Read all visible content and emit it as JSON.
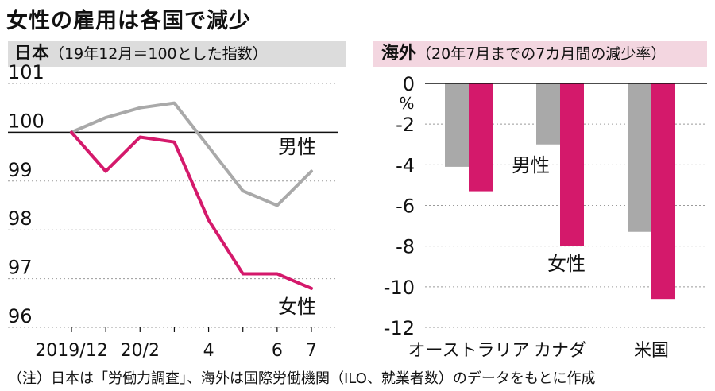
{
  "title": "女性の雇用は各国で減少",
  "left_panel": {
    "header_main": "日本",
    "header_sub": "（19年12月＝100とした指数）"
  },
  "right_panel": {
    "header_main": "海外",
    "header_sub": "（20年7月までの7カ月間の減少率）"
  },
  "note": "（注）日本は「労働力調査」、海外は国際労働機関（ILO、就業者数）のデータをもとに作成",
  "colors": {
    "men": "#a9a9a9",
    "women": "#d4196b"
  },
  "chart_data": [
    {
      "type": "line",
      "categories": [
        "2019/12",
        "2020/1",
        "20/2",
        "2020/3",
        "4",
        "2020/5",
        "6",
        "7"
      ],
      "tick_labels": [
        "2019/12",
        "",
        "20/2",
        "",
        "4",
        "",
        "6",
        "7"
      ],
      "series": [
        {
          "name": "男性",
          "values": [
            100,
            100.3,
            100.5,
            100.6,
            99.7,
            98.8,
            98.5,
            99.2
          ]
        },
        {
          "name": "女性",
          "values": [
            100,
            99.2,
            99.9,
            99.8,
            98.2,
            97.1,
            97.1,
            96.8
          ]
        }
      ],
      "ylim": [
        96,
        101
      ],
      "yticks": [
        "96",
        "97",
        "98",
        "99",
        "100",
        "101"
      ],
      "grid": true
    },
    {
      "type": "bar",
      "categories": [
        "オーストラリア",
        "カナダ",
        "米国"
      ],
      "series": [
        {
          "name": "男性",
          "values": [
            -4.1,
            -3.0,
            -7.3
          ]
        },
        {
          "name": "女性",
          "values": [
            -5.3,
            -8.0,
            -10.6
          ]
        }
      ],
      "ylim": [
        -12,
        0
      ],
      "yticks": [
        "0",
        "-2",
        "-4",
        "-6",
        "-8",
        "-10",
        "-12"
      ],
      "yunit": "%",
      "grid": true
    }
  ]
}
